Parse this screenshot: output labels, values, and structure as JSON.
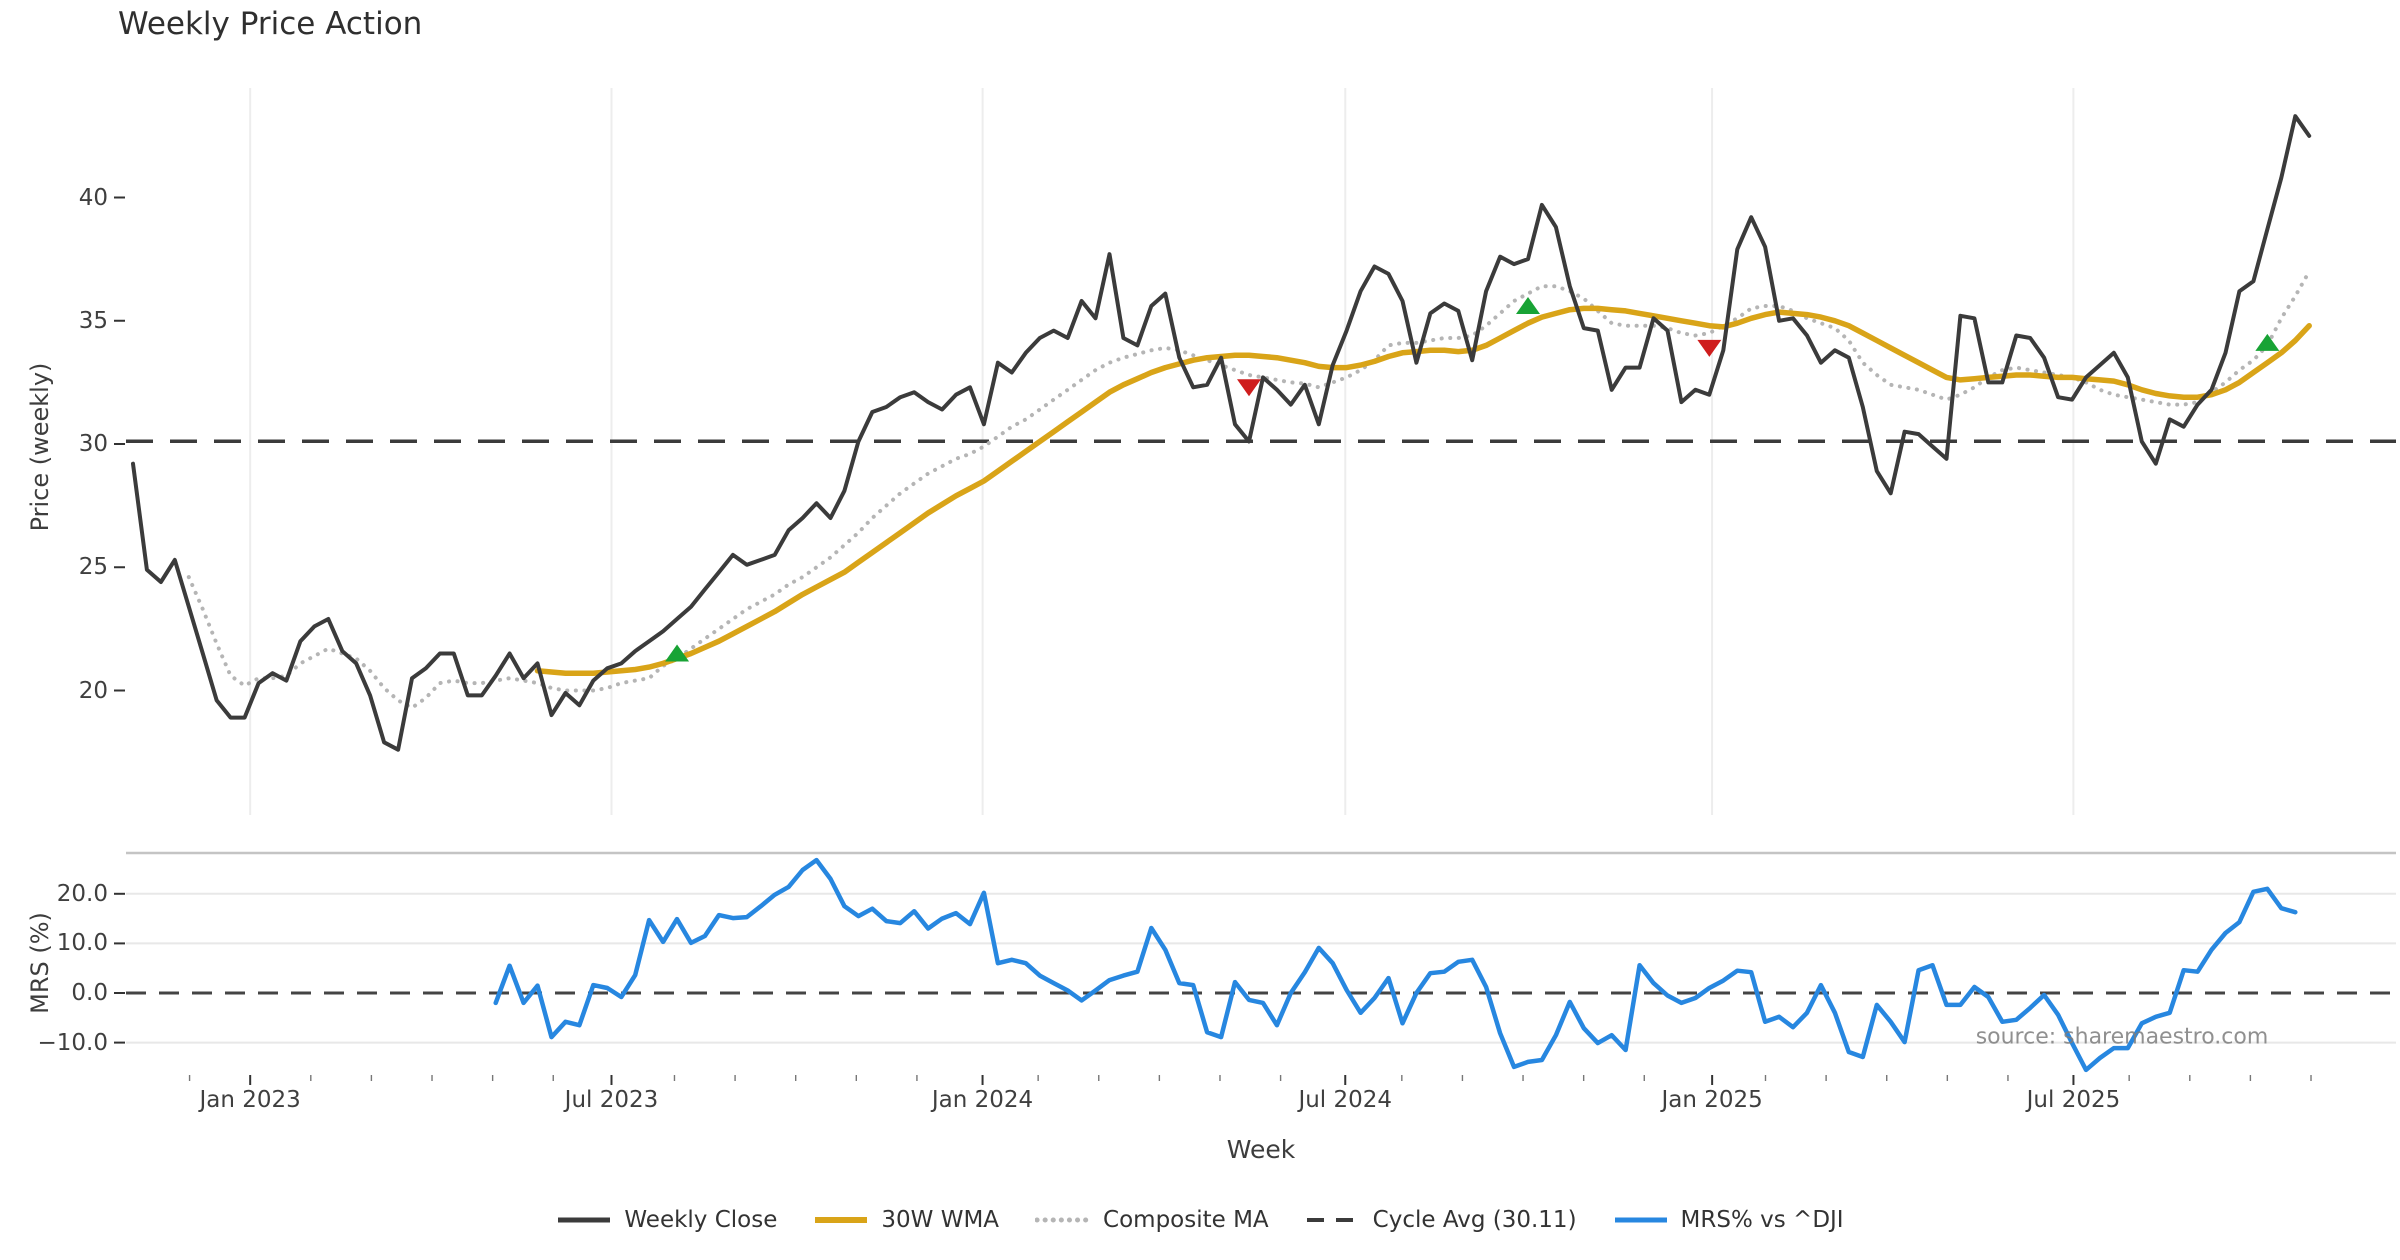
{
  "title": "Weekly Price Action",
  "watermark": "source: sharemaestro.com",
  "legend": [
    {
      "label": "Weekly Close",
      "style": "solid",
      "color": "#3b3b3b",
      "width": 5
    },
    {
      "label": "30W WMA",
      "style": "solid",
      "color": "#d9a418",
      "width": 6
    },
    {
      "label": "Composite MA",
      "style": "dotted",
      "color": "#b5b5b5",
      "width": 5
    },
    {
      "label": "Cycle Avg (30.11)",
      "style": "dashed",
      "color": "#3b3b3b",
      "width": 4
    },
    {
      "label": "MRS% vs ^DJI",
      "style": "solid",
      "color": "#2787e0",
      "width": 5
    }
  ],
  "colors": {
    "close": "#3b3b3b",
    "wma": "#d9a418",
    "composite": "#b5b5b5",
    "cycle_avg": "#3b3b3b",
    "mrs": "#2787e0",
    "buy_marker": "#18a335",
    "sell_marker": "#cf1d1d",
    "gridline": "#ededed",
    "panel_spine": "#c4c4c4",
    "tick_text": "#3f3f3f"
  },
  "chart_data": {
    "type": "line",
    "title": "Weekly Price Action",
    "xlabel": "Week",
    "x_unit": "weekly points, week index 0..156 (~Nov 2022 to ~Nov 2025)",
    "x_ticks": [
      {
        "label": "Jan 2023",
        "week": 8.4
      },
      {
        "label": "Jul 2023",
        "week": 34.3
      },
      {
        "label": "Jan 2024",
        "week": 60.9
      },
      {
        "label": "Jul 2024",
        "week": 86.9
      },
      {
        "label": "Jan 2025",
        "week": 113.2
      },
      {
        "label": "Jul 2025",
        "week": 139.1
      }
    ],
    "panels": [
      {
        "name": "price",
        "ylabel": "Price (weekly)",
        "ylim": [
          16.8,
          44.8
        ],
        "yticks": [
          {
            "label": "20",
            "value": 20
          },
          {
            "label": "25",
            "value": 25
          },
          {
            "label": "30",
            "value": 30
          },
          {
            "label": "35",
            "value": 35
          },
          {
            "label": "40",
            "value": 40
          }
        ],
        "hline": {
          "name": "Cycle Avg",
          "value": 30.11,
          "style": "dashed"
        },
        "series": [
          {
            "name": "Weekly Close",
            "style": "solid",
            "color": "#3b3b3b",
            "start_week": 0,
            "values": [
              29.2,
              24.9,
              24.4,
              25.3,
              23.4,
              21.5,
              19.6,
              18.9,
              18.9,
              20.3,
              20.7,
              20.4,
              22.0,
              22.6,
              22.9,
              21.6,
              21.1,
              19.8,
              17.9,
              17.6,
              20.5,
              20.9,
              21.5,
              21.5,
              19.8,
              19.8,
              20.6,
              21.5,
              20.5,
              21.1,
              19.0,
              19.9,
              19.4,
              20.4,
              20.9,
              21.1,
              21.6,
              22.0,
              22.4,
              22.9,
              23.4,
              24.1,
              24.8,
              25.5,
              25.1,
              25.3,
              25.5,
              26.5,
              27.0,
              27.6,
              27.0,
              28.1,
              30.1,
              31.3,
              31.5,
              31.9,
              32.1,
              31.7,
              31.4,
              32.0,
              32.3,
              30.8,
              33.3,
              32.9,
              33.7,
              34.3,
              34.6,
              34.3,
              35.8,
              35.1,
              37.7,
              34.3,
              34.0,
              35.6,
              36.1,
              33.5,
              32.3,
              32.4,
              33.5,
              30.8,
              30.1,
              32.7,
              32.2,
              31.6,
              32.4,
              30.8,
              33.2,
              34.6,
              36.2,
              37.2,
              36.9,
              35.8,
              33.3,
              35.3,
              35.7,
              35.4,
              33.4,
              36.2,
              37.6,
              37.3,
              37.5,
              39.7,
              38.8,
              36.4,
              34.7,
              34.6,
              32.2,
              33.1,
              33.1,
              35.1,
              34.6,
              31.7,
              32.2,
              32.0,
              33.8,
              37.9,
              39.2,
              38.0,
              35.0,
              35.1,
              34.4,
              33.3,
              33.8,
              33.5,
              31.5,
              28.9,
              28.0,
              30.5,
              30.4,
              29.9,
              29.4,
              35.2,
              35.1,
              32.5,
              32.5,
              34.4,
              34.3,
              33.5,
              31.9,
              31.8,
              32.7,
              33.2,
              33.7,
              32.7,
              30.1,
              29.2,
              31.0,
              30.7,
              31.6,
              32.2,
              33.7,
              36.2,
              36.6,
              38.7,
              40.8,
              43.3,
              42.5
            ]
          },
          {
            "name": "30W WMA",
            "style": "solid",
            "color": "#d9a418",
            "start_week": 29,
            "values": [
              20.8,
              20.75,
              20.7,
              20.7,
              20.7,
              20.75,
              20.8,
              20.85,
              20.95,
              21.1,
              21.3,
              21.5,
              21.75,
              22.0,
              22.3,
              22.6,
              22.9,
              23.2,
              23.55,
              23.9,
              24.2,
              24.5,
              24.8,
              25.2,
              25.6,
              26.0,
              26.4,
              26.8,
              27.2,
              27.55,
              27.9,
              28.2,
              28.5,
              28.9,
              29.3,
              29.7,
              30.1,
              30.5,
              30.9,
              31.3,
              31.7,
              32.1,
              32.4,
              32.65,
              32.9,
              33.1,
              33.25,
              33.4,
              33.5,
              33.55,
              33.6,
              33.6,
              33.55,
              33.5,
              33.4,
              33.3,
              33.15,
              33.1,
              33.1,
              33.2,
              33.35,
              33.55,
              33.7,
              33.75,
              33.8,
              33.8,
              33.75,
              33.8,
              34.0,
              34.3,
              34.6,
              34.9,
              35.15,
              35.3,
              35.45,
              35.5,
              35.5,
              35.45,
              35.4,
              35.3,
              35.2,
              35.1,
              35.0,
              34.9,
              34.8,
              34.75,
              34.9,
              35.1,
              35.25,
              35.35,
              35.3,
              35.25,
              35.15,
              35.0,
              34.8,
              34.5,
              34.2,
              33.9,
              33.6,
              33.3,
              33.0,
              32.7,
              32.6,
              32.65,
              32.7,
              32.75,
              32.8,
              32.8,
              32.75,
              32.7,
              32.7,
              32.65,
              32.6,
              32.55,
              32.4,
              32.2,
              32.05,
              31.95,
              31.9,
              31.9,
              32.0,
              32.2,
              32.5,
              32.9,
              33.3,
              33.7,
              34.2,
              34.8
            ]
          },
          {
            "name": "Composite MA",
            "style": "dotted",
            "color": "#b5b5b5",
            "start_week": 4,
            "values": [
              24.6,
              23.3,
              21.9,
              20.6,
              20.2,
              20.5,
              20.5,
              20.6,
              21.1,
              21.4,
              21.7,
              21.5,
              21.3,
              20.8,
              20.1,
              19.6,
              19.3,
              19.7,
              20.3,
              20.4,
              20.3,
              20.3,
              20.4,
              20.5,
              20.4,
              20.3,
              20.1,
              20.0,
              20.0,
              20.0,
              20.1,
              20.3,
              20.4,
              20.5,
              21.0,
              21.3,
              21.7,
              22.1,
              22.5,
              22.9,
              23.3,
              23.6,
              23.9,
              24.3,
              24.6,
              25.0,
              25.4,
              25.9,
              26.4,
              27.0,
              27.5,
              28.0,
              28.4,
              28.8,
              29.1,
              29.4,
              29.6,
              29.9,
              30.3,
              30.7,
              31.0,
              31.4,
              31.8,
              32.2,
              32.6,
              33.0,
              33.3,
              33.5,
              33.65,
              33.8,
              33.9,
              33.8,
              33.6,
              33.4,
              33.2,
              33.0,
              32.8,
              32.7,
              32.6,
              32.5,
              32.45,
              32.3,
              32.5,
              32.7,
              33.0,
              33.4,
              34.0,
              34.1,
              34.1,
              34.2,
              34.3,
              34.3,
              34.4,
              34.8,
              35.3,
              35.8,
              36.1,
              36.4,
              36.4,
              36.2,
              35.9,
              35.4,
              34.9,
              34.8,
              34.8,
              34.8,
              34.7,
              34.5,
              34.4,
              34.5,
              34.8,
              35.1,
              35.5,
              35.6,
              35.6,
              35.4,
              35.1,
              34.9,
              34.7,
              34.2,
              33.3,
              32.8,
              32.4,
              32.3,
              32.2,
              32.0,
              31.8,
              32.0,
              32.3,
              32.7,
              33.0,
              33.1,
              33.0,
              32.9,
              32.8,
              32.7,
              32.5,
              32.2,
              32.0,
              31.9,
              31.8,
              31.7,
              31.6,
              31.6,
              31.7,
              32.1,
              32.5,
              33.0,
              33.4,
              34.0,
              35.1,
              36.0,
              37.0
            ]
          }
        ],
        "markers": [
          {
            "week": 39,
            "price": 21.5,
            "direction": "up"
          },
          {
            "week": 80,
            "price": 32.3,
            "direction": "down"
          },
          {
            "week": 100,
            "price": 35.6,
            "direction": "up"
          },
          {
            "week": 113,
            "price": 33.9,
            "direction": "down"
          },
          {
            "week": 153,
            "price": 34.1,
            "direction": "up"
          }
        ]
      },
      {
        "name": "mrs",
        "ylabel": "MRS (%)",
        "ylim": [
          -16.5,
          28.2
        ],
        "yticks": [
          {
            "label": "20.0",
            "value": 20
          },
          {
            "label": "10.0",
            "value": 10
          },
          {
            "label": "0.0",
            "value": 0
          },
          {
            "label": "−10.0",
            "value": -10
          }
        ],
        "hline": {
          "name": "zero",
          "value": 0,
          "style": "dashed"
        },
        "series": [
          {
            "name": "MRS% vs ^DJI",
            "style": "solid",
            "color": "#2787e0",
            "start_week": 26,
            "values": [
              -2.0,
              5.5,
              -2.0,
              1.5,
              -8.9,
              -5.8,
              -6.5,
              1.6,
              1.0,
              -0.8,
              3.6,
              14.7,
              10.3,
              14.9,
              10.1,
              11.5,
              15.7,
              15.1,
              15.3,
              17.5,
              19.8,
              21.4,
              24.8,
              26.8,
              23.0,
              17.5,
              15.5,
              17.0,
              14.5,
              14.1,
              16.5,
              13.0,
              15.0,
              16.1,
              13.9,
              20.2,
              6.0,
              6.7,
              6.0,
              3.5,
              2.0,
              0.5,
              -1.5,
              0.5,
              2.6,
              3.5,
              4.3,
              13.1,
              8.7,
              2.0,
              1.6,
              -7.9,
              -8.9,
              2.2,
              -1.4,
              -2.0,
              -6.5,
              0.0,
              4.2,
              9.1,
              6.0,
              0.6,
              -4.0,
              -1.0,
              3.0,
              -6.1,
              0.0,
              4.0,
              4.3,
              6.3,
              6.7,
              1.2,
              -8.1,
              -14.9,
              -13.9,
              -13.5,
              -8.5,
              -1.8,
              -7.1,
              -10.1,
              -8.5,
              -11.5,
              5.6,
              2.0,
              -0.5,
              -2.0,
              -1.0,
              1.0,
              2.5,
              4.5,
              4.2,
              -5.8,
              -4.8,
              -6.9,
              -4.0,
              1.6,
              -4.0,
              -11.9,
              -12.9,
              -2.4,
              -5.8,
              -9.9,
              4.6,
              5.6,
              -2.4,
              -2.4,
              1.2,
              -0.8,
              -5.8,
              -5.4,
              -3.0,
              -0.4,
              -4.4,
              -10.1,
              -15.5,
              -13.1,
              -11.1,
              -11.1,
              -6.1,
              -4.8,
              -4.0,
              4.6,
              4.3,
              8.7,
              12.1,
              14.3,
              20.4,
              21.0,
              17.1,
              16.3
            ]
          }
        ]
      }
    ]
  }
}
